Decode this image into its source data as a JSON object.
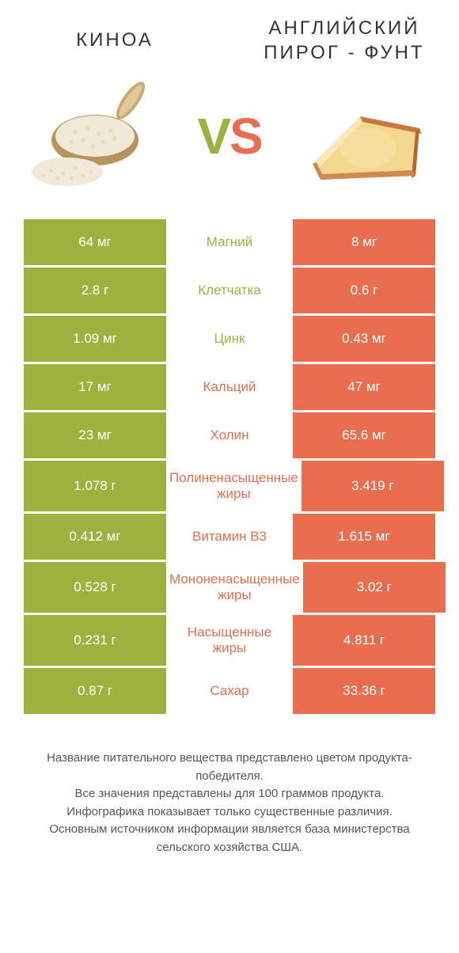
{
  "colors": {
    "green": "#9bb33e",
    "orange": "#e86e4f",
    "white": "#ffffff",
    "text": "#333333"
  },
  "header": {
    "left_title": "КИНОА",
    "right_title": "АНГЛИЙСКИЙ ПИРОГ - ФУНТ",
    "vs_v": "V",
    "vs_s": "S"
  },
  "rows": [
    {
      "left": "64 мг",
      "label": "Магний",
      "right": "8 мг",
      "winner": "left",
      "tall": false
    },
    {
      "left": "2.8 г",
      "label": "Клетчатка",
      "right": "0.6 г",
      "winner": "left",
      "tall": false
    },
    {
      "left": "1.09 мг",
      "label": "Цинк",
      "right": "0.43 мг",
      "winner": "left",
      "tall": false
    },
    {
      "left": "17 мг",
      "label": "Кальций",
      "right": "47 мг",
      "winner": "right",
      "tall": false
    },
    {
      "left": "23 мг",
      "label": "Холин",
      "right": "65.6 мг",
      "winner": "right",
      "tall": false
    },
    {
      "left": "1.078 г",
      "label": "Полиненасыщенные жиры",
      "right": "3.419 г",
      "winner": "right",
      "tall": true
    },
    {
      "left": "0.412 мг",
      "label": "Витамин B3",
      "right": "1.615 мг",
      "winner": "right",
      "tall": false
    },
    {
      "left": "0.528 г",
      "label": "Мононенасыщенные жиры",
      "right": "3.02 г",
      "winner": "right",
      "tall": true
    },
    {
      "left": "0.231 г",
      "label": "Насыщенные жиры",
      "right": "4.811 г",
      "winner": "right",
      "tall": true
    },
    {
      "left": "0.87 г",
      "label": "Сахар",
      "right": "33.36 г",
      "winner": "right",
      "tall": false
    }
  ],
  "footer": {
    "line1": "Название питательного вещества представлено цветом продукта-победителя.",
    "line2": "Все значения представлены для 100 граммов продукта.",
    "line3": "Инфографика показывает только существенные различия.",
    "line4": "Основным источником информации является база министерства сельского хозяйства США."
  }
}
